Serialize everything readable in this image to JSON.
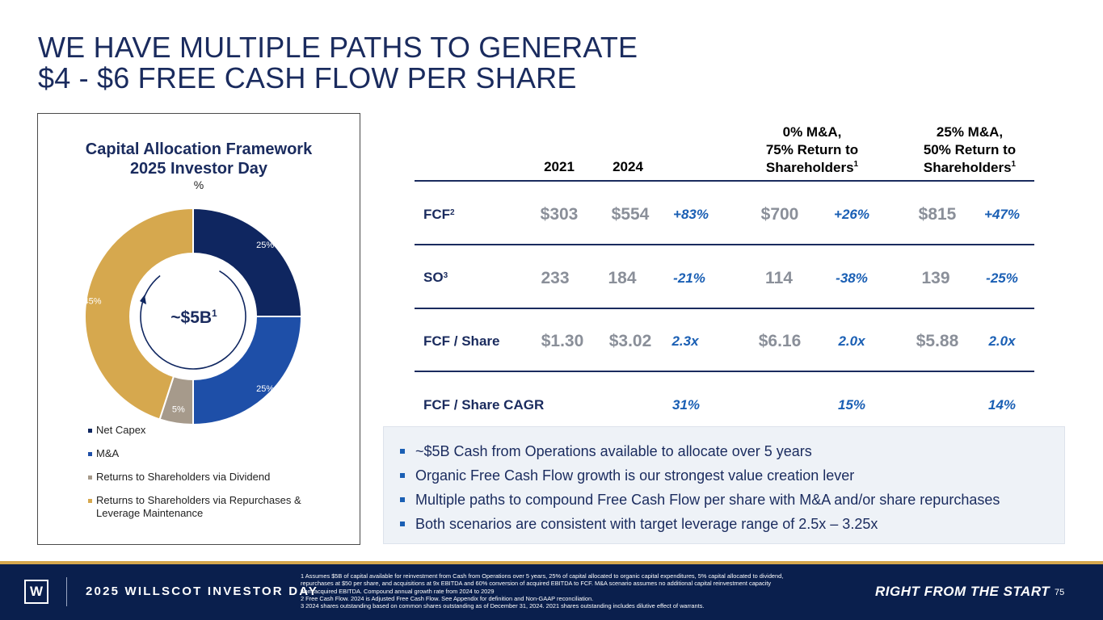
{
  "title": {
    "line1": "WE HAVE MULTIPLE PATHS TO GENERATE",
    "line2": "$4 - $6 FREE CASH FLOW PER SHARE"
  },
  "chart_data": {
    "type": "pie",
    "title": "Capital Allocation Framework",
    "subtitle": "2025 Investor Day",
    "unit": "%",
    "center_label": "~$5B",
    "center_sup": "1",
    "categories": [
      "Net Capex",
      "M&A",
      "Returns to Shareholders via Dividend",
      "Returns to Shareholders via Repurchases & Leverage Maintenance"
    ],
    "values": [
      25,
      25,
      5,
      45
    ],
    "labels": [
      "25%",
      "25%",
      "5%",
      "45%"
    ],
    "colors": [
      "#0f2660",
      "#1e4fa8",
      "#a69a8b",
      "#d6a84e"
    ],
    "legend_position": "bottom"
  },
  "table": {
    "headers": {
      "y2021": "2021",
      "y2024": "2024",
      "s1_line1": "0% M&A,",
      "s1_line2": "75% Return to",
      "s1_line3": "Shareholders",
      "s1_sup": "1",
      "s2_line1": "25% M&A,",
      "s2_line2": "50% Return to",
      "s2_line3": "Shareholders",
      "s2_sup": "1"
    },
    "rows": [
      {
        "label": "FCF",
        "sup": "2",
        "v2021": "$303",
        "v2024": "$554",
        "chg": "+83%",
        "s1": "$700",
        "s1chg": "+26%",
        "s2": "$815",
        "s2chg": "+47%"
      },
      {
        "label": "SO",
        "sup": "3",
        "v2021": "233",
        "v2024": "184",
        "chg": "-21%",
        "s1": "114",
        "s1chg": "-38%",
        "s2": "139",
        "s2chg": "-25%"
      },
      {
        "label": "FCF / Share",
        "sup": "",
        "v2021": "$1.30",
        "v2024": "$3.02",
        "chg": "2.3x",
        "s1": "$6.16",
        "s1chg": "2.0x",
        "s2": "$5.88",
        "s2chg": "2.0x"
      },
      {
        "label": "FCF / Share CAGR",
        "sup": "",
        "v2021": "",
        "v2024": "",
        "chg": "31%",
        "s1": "",
        "s1chg": "15%",
        "s2": "",
        "s2chg": "14%"
      }
    ]
  },
  "bullets": [
    "~$5B Cash from Operations available to allocate over 5 years",
    "Organic Free Cash Flow growth is our strongest value creation lever",
    "Multiple paths to compound Free Cash Flow per share with M&A and/or share repurchases",
    "Both scenarios are consistent with target leverage range of 2.5x – 3.25x"
  ],
  "footer": {
    "logo": "W",
    "event": "2025 WILLSCOT INVESTOR DAY",
    "footnote1": "1 Assumes $5B of capital available for reinvestment from Cash from Operations over 5 years, 25% of capital allocated to organic capital expenditures, 5% capital allocated to dividend,\nrepurchases at $50 per share, and acquisitions at 9x EBITDA and 60% conversion of acquired EBITDA to FCF. M&A scenario assumes no additional capital reinvestment capacity\nfrom acquired EBITDA. Compound annual growth rate from 2024 to 2029",
    "footnote2": "2 Free Cash Flow. 2024 is Adjusted Free Cash Flow. See Appendix for definition and Non-GAAP reconciliation.",
    "footnote3": "3 2024 shares outstanding based on common shares outstanding as of December 31, 2024. 2021 shares outstanding includes dilutive effect of warrants.",
    "tagline": "RIGHT FROM THE START",
    "page": "75"
  }
}
